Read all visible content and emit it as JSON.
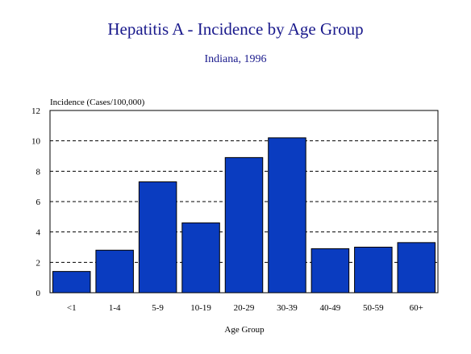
{
  "chart_data": {
    "type": "bar",
    "title": "Hepatitis A - Incidence by Age Group",
    "subtitle": "Indiana, 1996",
    "ylabel": "Incidence (Cases/100,000)",
    "xlabel": "Age Group",
    "categories": [
      "<1",
      "1-4",
      "5-9",
      "10-19",
      "20-29",
      "30-39",
      "40-49",
      "50-59",
      "60+"
    ],
    "values": [
      1.4,
      2.8,
      7.3,
      4.6,
      8.9,
      10.2,
      2.9,
      3.0,
      3.3
    ],
    "ylim": [
      0,
      12
    ],
    "yticks": [
      "0",
      "2",
      "4",
      "6",
      "8",
      "10",
      "12"
    ],
    "grid": true,
    "bar_color": "#0a3cc0",
    "title_color": "#1a1a8c"
  }
}
